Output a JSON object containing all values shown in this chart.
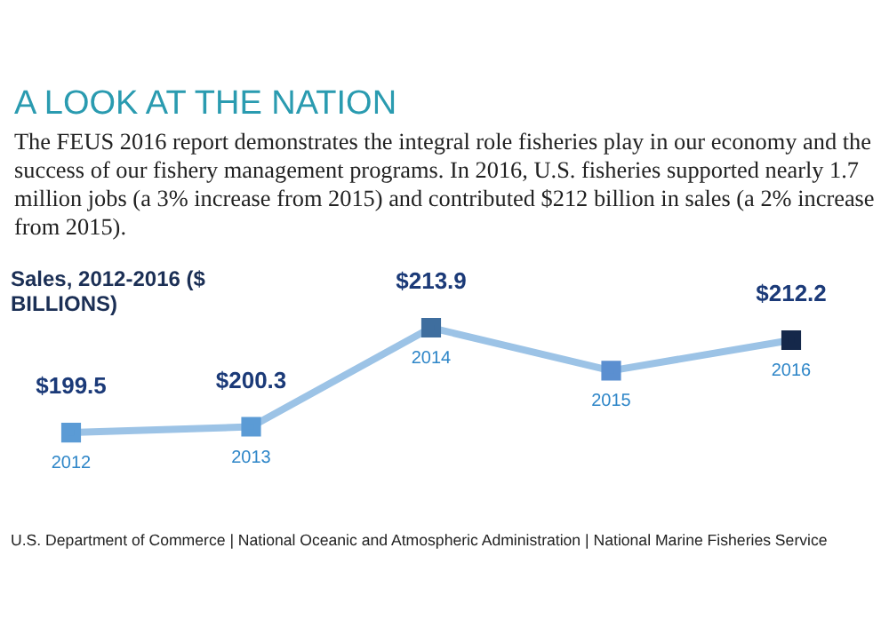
{
  "chart_data": {
    "type": "line",
    "title": "A LOOK AT THE NATION",
    "subtitle": "The FEUS 2016 report demonstrates the integral role fisheries play in our economy and the success of our fishery management programs. In 2016, U.S. fisheries supported nearly 1.7 million jobs (a 3% increase from 2015) and contributed $212 billion in sales (a 2% increase from 2015).",
    "ylabel": "Sales, 2012-2016 ($ BILLIONS)",
    "categories": [
      "2012",
      "2013",
      "2014",
      "2015",
      "2016"
    ],
    "series": [
      {
        "color": "#9cc3e6",
        "colors": [
          "#5b9bd5",
          "#5b9bd5",
          "#3f6e9e",
          "#5b8fd0",
          "#15284a"
        ],
        "values": [
          199.5,
          200.3,
          213.9,
          208.0,
          212.2
        ],
        "value_labels": [
          "$199.5",
          "$200.3",
          "$213.9",
          null,
          "$212.2"
        ]
      }
    ],
    "marker": "square",
    "legend": false,
    "annotations": [
      "U.S. Department of Commerce  |  National Oceanic and Atmospheric Administration  |  National Marine Fisheries Service"
    ]
  }
}
